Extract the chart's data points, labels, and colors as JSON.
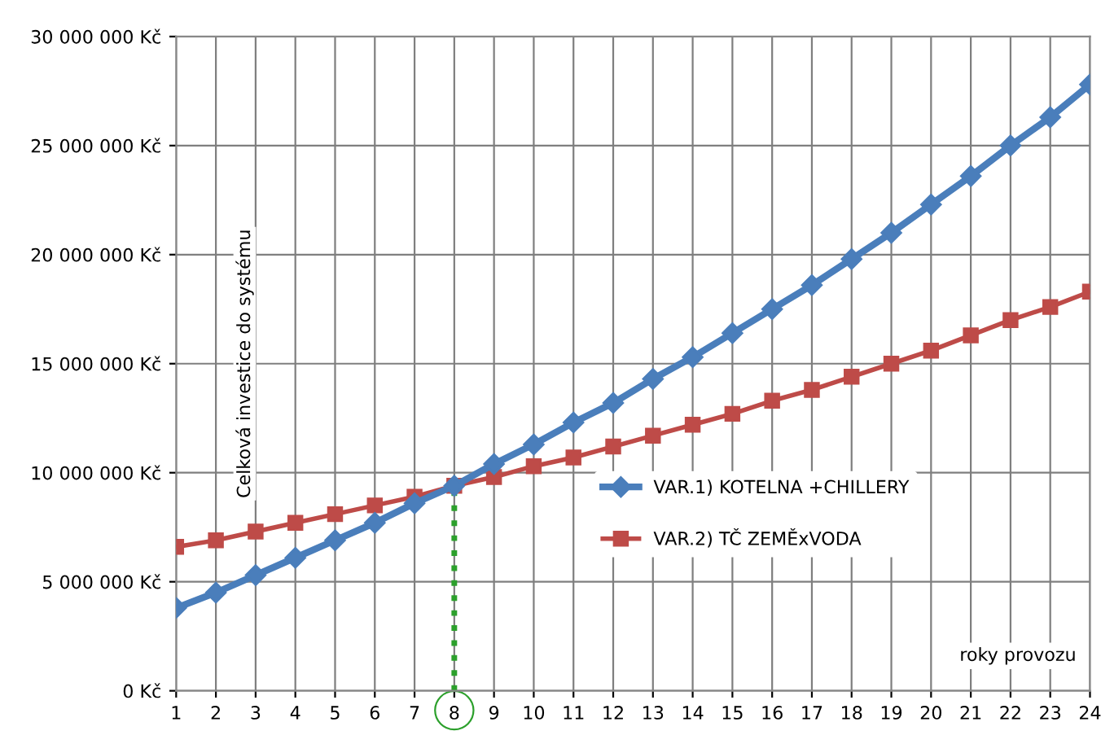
{
  "chart_data": {
    "type": "line",
    "ylabel": "Celková investice do systému",
    "xlabel": "roky provozu",
    "x": [
      1,
      2,
      3,
      4,
      5,
      6,
      7,
      8,
      9,
      10,
      11,
      12,
      13,
      14,
      15,
      16,
      17,
      18,
      19,
      20,
      21,
      22,
      23,
      24
    ],
    "series": [
      {
        "name": "VAR.1) KOTELNA +CHILLERY",
        "color": "#4a7ebb",
        "marker": "diamond",
        "values": [
          3800000,
          4500000,
          5300000,
          6100000,
          6900000,
          7700000,
          8600000,
          9400000,
          10400000,
          11300000,
          12300000,
          13200000,
          14300000,
          15300000,
          16400000,
          17500000,
          18600000,
          19800000,
          21000000,
          22300000,
          23600000,
          25000000,
          26300000,
          27800000
        ]
      },
      {
        "name": "VAR.2) TČ ZEMĚxVODA",
        "color": "#be4b48",
        "marker": "square",
        "values": [
          6600000,
          6900000,
          7300000,
          7700000,
          8100000,
          8500000,
          8900000,
          9400000,
          9800000,
          10300000,
          10700000,
          11200000,
          11700000,
          12200000,
          12700000,
          13300000,
          13800000,
          14400000,
          15000000,
          15600000,
          16300000,
          17000000,
          17600000,
          18300000
        ]
      }
    ],
    "xlim": [
      1,
      24
    ],
    "xticks": [
      1,
      2,
      3,
      4,
      5,
      6,
      7,
      8,
      9,
      10,
      11,
      12,
      13,
      14,
      15,
      16,
      17,
      18,
      19,
      20,
      21,
      22,
      23,
      24
    ],
    "ylim": [
      0,
      30000000
    ],
    "yticks": [
      {
        "value": 0,
        "label": "0 Kč"
      },
      {
        "value": 5000000,
        "label": "5 000 000 Kč"
      },
      {
        "value": 10000000,
        "label": "10 000 000 Kč"
      },
      {
        "value": 15000000,
        "label": "15 000 000 Kč"
      },
      {
        "value": 20000000,
        "label": "20 000 000 Kč"
      },
      {
        "value": 25000000,
        "label": "25 000 000 Kč"
      },
      {
        "value": 30000000,
        "label": "30 000 000 Kč"
      }
    ],
    "ref_lines": [
      {
        "axis": "x",
        "value": 8,
        "label": null,
        "color": "#2ca02c",
        "line_style": "dotted"
      }
    ],
    "grid": true,
    "legend": "right"
  }
}
